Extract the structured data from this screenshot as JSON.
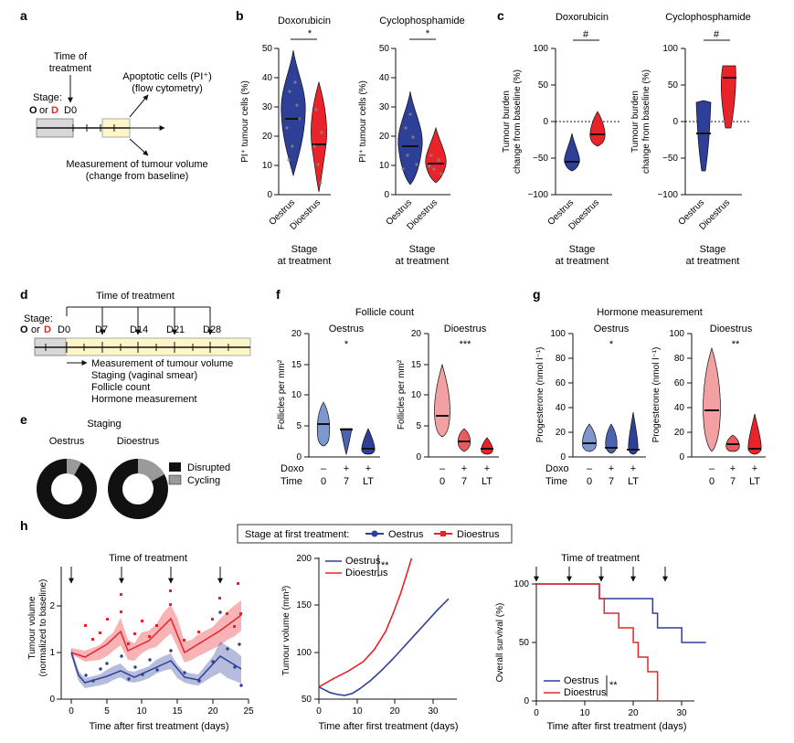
{
  "colors": {
    "oestrus": "#2e3f97",
    "dioestrus": "#e8242a",
    "cycling": "#9a9a9a",
    "disrupted": "#111111",
    "timeline_bg": "#fff6c8",
    "timeline_grey": "#d8d8d8"
  },
  "panel_a": {
    "letter": "a",
    "time_of_treatment": "Time of treatment",
    "stage_label": "Stage:",
    "stage_o": "O",
    "stage_or": "or",
    "stage_d": "D",
    "day": "D0",
    "outcome_apoptosis": "Apoptotic cells (PI⁺)",
    "outcome_apoptosis_method": "(flow cytometry)",
    "outcome_volume": "Measurement of tumour volume",
    "outcome_volume_sub": "(change from baseline)"
  },
  "panel_b": {
    "letter": "b",
    "ylabel": "PI⁺ tumour cells (%)",
    "yticks": [
      "0",
      "10",
      "20",
      "30",
      "40",
      "50"
    ],
    "groups": [
      "Oestrus",
      "Dioestrus"
    ],
    "xlabel_line1": "Stage",
    "xlabel_line2": "at treatment",
    "plots": [
      {
        "title": "Doxorubicin",
        "sig": "*"
      },
      {
        "title": "Cyclophosphamide",
        "sig": "*"
      }
    ]
  },
  "panel_c": {
    "letter": "c",
    "ylabel_line1": "Tumour burden",
    "ylabel_line2": "change from baseline (%)",
    "yticks": [
      "100",
      "50",
      "0",
      "−50",
      "−100"
    ],
    "groups": [
      "Oestrus",
      "Dioestrus"
    ],
    "xlabel_line1": "Stage",
    "xlabel_line2": "at treatment",
    "plots": [
      {
        "title": "Doxorubicin",
        "sig": "#"
      },
      {
        "title": "Cyclophosphamide",
        "sig": "#"
      }
    ]
  },
  "panel_d": {
    "letter": "d",
    "time_of_treatment": "Time of treatment",
    "stage_label": "Stage:",
    "stage_o": "O",
    "stage_or": "or",
    "stage_d": "D",
    "days": [
      "D0",
      "D7",
      "D14",
      "D21",
      "D28"
    ],
    "measurements": [
      "Measurement of tumour volume",
      "Staging (vaginal smear)",
      "Follicle count",
      "Hormone measurement"
    ]
  },
  "panel_e": {
    "letter": "e",
    "title": "Staging",
    "donuts": [
      {
        "label": "Oestrus",
        "cycling_fraction": 0.08
      },
      {
        "label": "Dioestrus",
        "cycling_fraction": 0.17
      }
    ],
    "legend": [
      "Disrupted",
      "Cycling"
    ]
  },
  "panel_f": {
    "letter": "f",
    "title": "Follicle count",
    "ylabel": "Follicles per mm²",
    "yticks": [
      "0",
      "5",
      "10",
      "15",
      "20"
    ],
    "plots": [
      {
        "title": "Oestrus",
        "sig": "*"
      },
      {
        "title": "Dioestrus",
        "sig": "***"
      }
    ],
    "row_doxo": "Doxo",
    "row_time": "Time",
    "doxo_values": [
      "–",
      "+",
      "+"
    ],
    "time_values": [
      "0",
      "7",
      "LT"
    ]
  },
  "panel_g": {
    "letter": "g",
    "title": "Hormone measurement",
    "ylabel": "Progesterone (nmol l⁻¹)",
    "yticks": [
      "0",
      "20",
      "40",
      "60",
      "80",
      "100"
    ],
    "plots": [
      {
        "title": "Oestrus",
        "sig": "*"
      },
      {
        "title": "Dioestrus",
        "sig": "**"
      }
    ],
    "row_doxo": "Doxo",
    "row_time": "Time",
    "doxo_values": [
      "–",
      "+",
      "+"
    ],
    "time_values": [
      "0",
      "7",
      "LT"
    ]
  },
  "panel_h": {
    "letter": "h",
    "legend_title": "Stage at first treatment:",
    "legend_oestrus": "Oestrus",
    "legend_dioestrus": "Dioestrus",
    "plot1": {
      "title": "Time of treatment",
      "ylabel_line1": "Tumour volume",
      "ylabel_line2": "(normalized to baseline)",
      "xlabel": "Time after first treatment (days)",
      "xticks": [
        "0",
        "5",
        "10",
        "15",
        "20",
        "25"
      ],
      "yticks": [
        "0",
        "1",
        "2"
      ]
    },
    "plot2": {
      "ylabel": "Tumour volume (mm³)",
      "xlabel": "Time after first treatment (days)",
      "xticks": [
        "0",
        "10",
        "20",
        "30"
      ],
      "yticks": [
        "50",
        "100",
        "150",
        "200"
      ],
      "legend_oestrus": "Oestrus",
      "legend_dioestrus": "Dioestrus",
      "sig": "**"
    },
    "plot3": {
      "title": "Time of treatment",
      "ylabel": "Overall survival (%)",
      "xlabel": "Time after first treatment (days)",
      "xticks": [
        "0",
        "10",
        "20",
        "30"
      ],
      "yticks": [
        "0",
        "50",
        "100"
      ],
      "legend_oestrus": "Oestrus",
      "legend_dioestrus": "Dioestrus",
      "sig": "**"
    }
  },
  "chart_data": [
    {
      "type": "line",
      "panel": "h-middle",
      "title": "",
      "xlabel": "Time after first treatment (days)",
      "ylabel": "Tumour volume (mm³)",
      "xlim": [
        0,
        36
      ],
      "ylim": [
        50,
        200
      ],
      "series": [
        {
          "name": "Oestrus",
          "x": [
            0,
            3,
            5,
            7,
            9,
            11,
            14,
            17,
            20,
            23,
            26,
            29,
            32,
            35
          ],
          "values": [
            63,
            57,
            55,
            54,
            56,
            61,
            70,
            81,
            93,
            106,
            119,
            132,
            145,
            157
          ]
        },
        {
          "name": "Dioestrus",
          "x": [
            0,
            4,
            8,
            12,
            15,
            18,
            20,
            22,
            24,
            25
          ],
          "values": [
            63,
            72,
            80,
            90,
            103,
            122,
            141,
            162,
            187,
            200
          ]
        }
      ]
    },
    {
      "type": "line",
      "panel": "h-right",
      "title": "Time of treatment",
      "xlabel": "Time after first treatment (days)",
      "ylabel": "Overall survival (%)",
      "xlim": [
        0,
        36
      ],
      "ylim": [
        0,
        100
      ],
      "series": [
        {
          "name": "Oestrus",
          "x": [
            0,
            13,
            13,
            16,
            20,
            24,
            24,
            25,
            25,
            30,
            35
          ],
          "values": [
            100,
            100,
            87.5,
            87.5,
            87.5,
            87.5,
            75,
            75,
            62.5,
            50,
            50
          ]
        },
        {
          "name": "Dioestrus",
          "x": [
            0,
            8,
            13,
            13,
            14,
            17,
            19,
            20,
            21,
            22,
            23,
            24,
            25
          ],
          "values": [
            100,
            100,
            100,
            87.5,
            75,
            62.5,
            62.5,
            50,
            37.5,
            37.5,
            25,
            25,
            0
          ]
        }
      ]
    }
  ]
}
